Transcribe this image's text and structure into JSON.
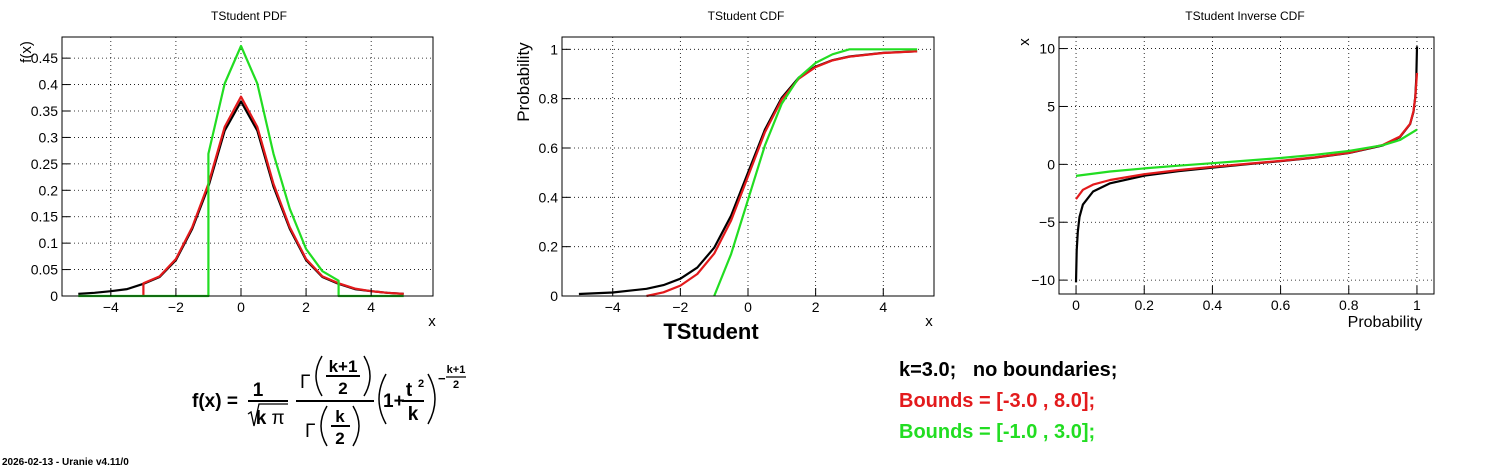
{
  "colors": {
    "black": "#000000",
    "red": "#e31a1c",
    "green": "#22dd22",
    "grid": "#000000"
  },
  "chart_data": [
    {
      "type": "line",
      "title": "TStudent PDF",
      "xlabel": "x",
      "ylabel": "f(x)",
      "xlim": [
        -5.5,
        5.9
      ],
      "ylim": [
        0,
        0.49
      ],
      "xticks": [
        -4,
        -2,
        0,
        2,
        4
      ],
      "xtick_labels": [
        "−4",
        "−2",
        "0",
        "2",
        "4"
      ],
      "yticks": [
        0,
        0.05,
        0.1,
        0.15,
        0.2,
        0.25,
        0.3,
        0.35,
        0.4,
        0.45
      ],
      "ytick_labels": [
        "0",
        "0.05",
        "0.1",
        "0.15",
        "0.2",
        "0.25",
        "0.3",
        "0.35",
        "0.4",
        "0.45"
      ],
      "grid": true,
      "series": [
        {
          "name": "k=3.0; no boundaries;",
          "color": "#000000",
          "x": [
            -5,
            -4.5,
            -4,
            -3.5,
            -3,
            -2.5,
            -2,
            -1.5,
            -1,
            -0.5,
            0,
            0.5,
            1,
            1.5,
            2,
            2.5,
            3,
            3.5,
            4,
            4.5,
            5
          ],
          "y": [
            0.004,
            0.006,
            0.009,
            0.013,
            0.023,
            0.036,
            0.068,
            0.127,
            0.207,
            0.313,
            0.368,
            0.313,
            0.207,
            0.127,
            0.068,
            0.036,
            0.023,
            0.013,
            0.009,
            0.006,
            0.004
          ]
        },
        {
          "name": "Bounds = [-3.0 , 8.0];",
          "color": "#e31a1c",
          "x": [
            -3,
            -3,
            -2.5,
            -2,
            -1.5,
            -1,
            -0.5,
            0,
            0.5,
            1,
            1.5,
            2,
            2.5,
            3,
            3.5,
            4,
            4.5,
            5
          ],
          "y": [
            0,
            0.024,
            0.037,
            0.07,
            0.13,
            0.212,
            0.32,
            0.377,
            0.32,
            0.212,
            0.13,
            0.07,
            0.037,
            0.024,
            0.014,
            0.009,
            0.006,
            0.004
          ]
        },
        {
          "name": "Bounds = [-1.0 , 3.0];",
          "color": "#22dd22",
          "x": [
            -5,
            -1,
            -1,
            -0.5,
            0,
            0.5,
            1,
            1.5,
            2,
            2.5,
            3,
            3,
            5
          ],
          "y": [
            0,
            0,
            0.269,
            0.402,
            0.473,
            0.402,
            0.269,
            0.165,
            0.089,
            0.047,
            0.029,
            0,
            0
          ]
        }
      ]
    },
    {
      "type": "line",
      "title": "TStudent CDF",
      "xlabel": "x",
      "ylabel": "Probability",
      "xlim": [
        -5.5,
        5.5
      ],
      "ylim": [
        0,
        1.05
      ],
      "xticks": [
        -4,
        -2,
        0,
        2,
        4
      ],
      "xtick_labels": [
        "−4",
        "−2",
        "0",
        "2",
        "4"
      ],
      "yticks": [
        0,
        0.2,
        0.4,
        0.6,
        0.8,
        1
      ],
      "ytick_labels": [
        "0",
        "0.2",
        "0.4",
        "0.6",
        "0.8",
        "1"
      ],
      "grid": true,
      "series": [
        {
          "name": "k=3.0; no boundaries;",
          "color": "#000000",
          "x": [
            -5,
            -4,
            -3,
            -2.5,
            -2,
            -1.5,
            -1,
            -0.5,
            0,
            0.5,
            1,
            1.5,
            2,
            2.5,
            3,
            4,
            5
          ],
          "y": [
            0.008,
            0.014,
            0.029,
            0.044,
            0.07,
            0.115,
            0.196,
            0.326,
            0.5,
            0.674,
            0.804,
            0.885,
            0.93,
            0.956,
            0.971,
            0.986,
            0.992
          ]
        },
        {
          "name": "Bounds = [-3.0 , 8.0];",
          "color": "#e31a1c",
          "x": [
            -3,
            -2.5,
            -2,
            -1.5,
            -1,
            -0.5,
            0,
            0.5,
            1,
            1.5,
            2,
            2.5,
            3,
            4,
            5
          ],
          "y": [
            0,
            0.015,
            0.042,
            0.089,
            0.172,
            0.306,
            0.485,
            0.664,
            0.797,
            0.881,
            0.928,
            0.955,
            0.97,
            0.985,
            0.992
          ]
        },
        {
          "name": "Bounds = [-1.0 , 3.0];",
          "color": "#22dd22",
          "x": [
            -1,
            -0.5,
            0,
            0.5,
            1,
            1.5,
            2,
            2.5,
            3,
            5
          ],
          "y": [
            0,
            0.17,
            0.39,
            0.61,
            0.78,
            0.885,
            0.945,
            0.98,
            1,
            1
          ]
        }
      ]
    },
    {
      "type": "line",
      "title": "TStudent Inverse CDF",
      "xlabel": "Probability",
      "ylabel": "x",
      "xlim": [
        -0.05,
        1.05
      ],
      "ylim": [
        -11.2,
        11
      ],
      "xticks": [
        0,
        0.2,
        0.4,
        0.6,
        0.8,
        1
      ],
      "xtick_labels": [
        "0",
        "0.2",
        "0.4",
        "0.6",
        "0.8",
        "1"
      ],
      "yticks": [
        -10,
        -5,
        0,
        5,
        10
      ],
      "ytick_labels": [
        "−10",
        "−5",
        "0",
        "5",
        "10"
      ],
      "grid": true,
      "series": [
        {
          "name": "k=3.0; no boundaries;",
          "color": "#000000",
          "x": [
            0.0,
            0.002,
            0.005,
            0.01,
            0.02,
            0.05,
            0.1,
            0.2,
            0.3,
            0.4,
            0.5,
            0.6,
            0.7,
            0.8,
            0.9,
            0.95,
            0.98,
            0.99,
            0.995,
            0.998,
            1.0
          ],
          "y": [
            -10.2,
            -7.45,
            -5.84,
            -4.54,
            -3.48,
            -2.35,
            -1.64,
            -0.98,
            -0.58,
            -0.28,
            0,
            0.28,
            0.58,
            0.98,
            1.64,
            2.35,
            3.48,
            4.54,
            5.84,
            7.45,
            10.2
          ]
        },
        {
          "name": "Bounds = [-3.0 , 8.0];",
          "color": "#e31a1c",
          "x": [
            0.0,
            0.02,
            0.05,
            0.1,
            0.2,
            0.3,
            0.4,
            0.5,
            0.6,
            0.7,
            0.8,
            0.9,
            0.95,
            0.98,
            0.99,
            0.995,
            1.0
          ],
          "y": [
            -3.0,
            -2.2,
            -1.75,
            -1.35,
            -0.85,
            -0.5,
            -0.22,
            0.04,
            0.3,
            0.6,
            1.0,
            1.68,
            2.4,
            3.5,
            4.6,
            5.8,
            7.9
          ]
        },
        {
          "name": "Bounds = [-1.0 , 3.0];",
          "color": "#22dd22",
          "x": [
            0.0,
            0.1,
            0.2,
            0.3,
            0.4,
            0.5,
            0.6,
            0.7,
            0.8,
            0.9,
            0.95,
            1.0
          ],
          "y": [
            -1.0,
            -0.62,
            -0.35,
            -0.12,
            0.1,
            0.32,
            0.55,
            0.82,
            1.15,
            1.65,
            2.1,
            3.0
          ]
        }
      ]
    }
  ],
  "bottom_title": "TStudent",
  "formula": {
    "lhs": "f(x) =",
    "one": "1",
    "k": "k",
    "pi": "π",
    "gamma": "Γ",
    "kplus1": "k+1",
    "two": "2",
    "oneplus": "1+",
    "t": "t",
    "sq": "2",
    "neg_exp": "−",
    "exp_num": "k+1",
    "exp_den": "2"
  },
  "legend": [
    {
      "text": "k=3.0;   no boundaries;",
      "color": "#000000"
    },
    {
      "text": "Bounds = [-3.0 , 8.0];",
      "color": "#e31a1c"
    },
    {
      "text": "Bounds = [-1.0 , 3.0];",
      "color": "#22dd22"
    }
  ],
  "footer": "2026-02-13 - Uranie v4.11/0"
}
